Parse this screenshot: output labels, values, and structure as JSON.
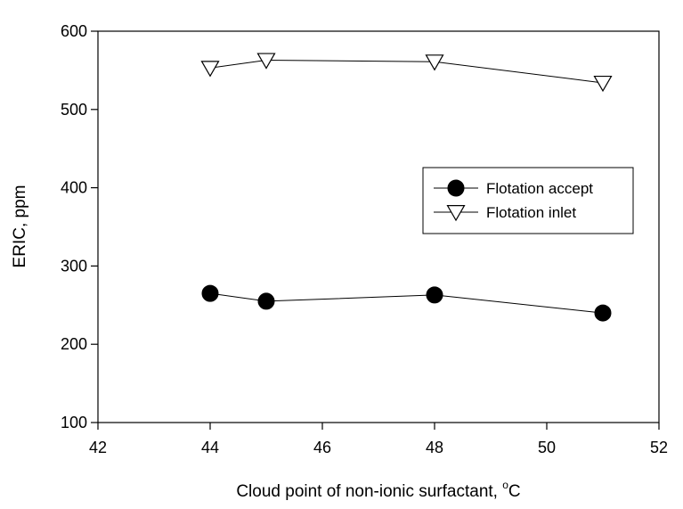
{
  "chart_data": {
    "type": "line",
    "title": "",
    "xlabel_main": "Cloud point of non-ionic surfactant, ",
    "xlabel_sup": "o",
    "xlabel_unit": "C",
    "ylabel": "ERIC, ppm",
    "xlim": [
      42,
      52
    ],
    "ylim": [
      100,
      600
    ],
    "xticks": [
      42,
      44,
      46,
      48,
      50,
      52
    ],
    "yticks": [
      100,
      200,
      300,
      400,
      500,
      600
    ],
    "grid": false,
    "legend_position": "right-middle",
    "series": [
      {
        "name": "Flotation accept",
        "marker": "filled-circle",
        "color": "#000000",
        "x": [
          44,
          45,
          48,
          51
        ],
        "y": [
          265,
          255,
          263,
          240
        ]
      },
      {
        "name": "Flotation inlet",
        "marker": "open-triangle-down",
        "color": "#000000",
        "x": [
          44,
          45,
          48,
          51
        ],
        "y": [
          553,
          563,
          561,
          534
        ]
      }
    ]
  }
}
